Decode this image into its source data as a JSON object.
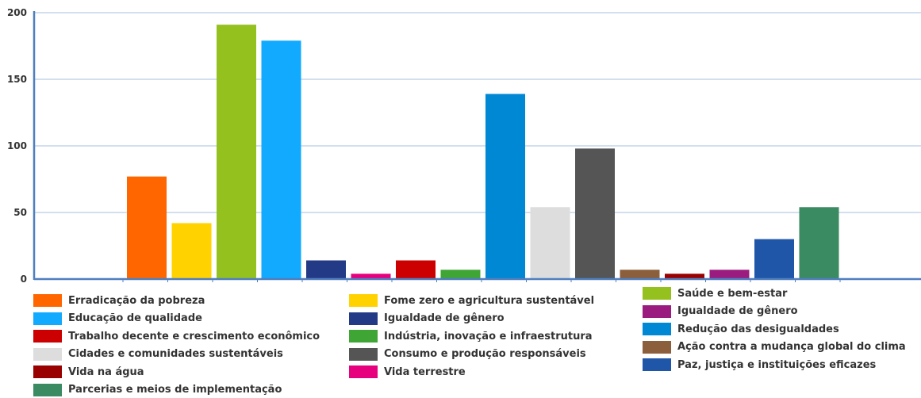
{
  "chart_data": {
    "type": "bar",
    "title": "",
    "xlabel": "",
    "ylabel": "",
    "ylim": [
      0,
      200
    ],
    "yticks": [
      0,
      50,
      100,
      150,
      200
    ],
    "grid": true,
    "legend_position": "bottom",
    "series": [
      {
        "name": "Erradicação da pobreza",
        "value": 77,
        "color": "#FF6600"
      },
      {
        "name": "Fome zero e agricultura sustentável",
        "value": 42,
        "color": "#FFD200"
      },
      {
        "name": "Saúde e bem-estar",
        "value": 191,
        "color": "#95C11F"
      },
      {
        "name": "Educação de qualidade",
        "value": 179,
        "color": "#11AAFF"
      },
      {
        "name": "Igualdade de gênero",
        "value": 14,
        "color": "#233A86"
      },
      {
        "name": "Vida terrestre",
        "value": 4,
        "color": "#E6007E"
      },
      {
        "name": "Trabalho decente e crescimento econômico",
        "value": 14,
        "color": "#CC0000"
      },
      {
        "name": "Indústria, inovação e infraestrutura",
        "value": 7,
        "color": "#3FA535"
      },
      {
        "name": "Redução das desigualdades",
        "value": 139,
        "color": "#0088D4"
      },
      {
        "name": "Cidades e comunidades sustentáveis",
        "value": 54,
        "color": "#DDDDDD"
      },
      {
        "name": "Consumo e produção responsáveis",
        "value": 98,
        "color": "#555555"
      },
      {
        "name": "Ação contra a mudança global do clima",
        "value": 7,
        "color": "#8B5E3C"
      },
      {
        "name": "Vida na água",
        "value": 4,
        "color": "#990000"
      },
      {
        "name": "Igualdade de gênero",
        "value": 7,
        "color": "#9B1C7F"
      },
      {
        "name": "Paz, justiça e instituições eficazes",
        "value": 30,
        "color": "#1F56A8"
      },
      {
        "name": "Parcerias e meios de implementação",
        "value": 54,
        "color": "#3A8A62"
      }
    ],
    "legend": [
      {
        "label": "Erradicação da pobreza",
        "color": "#FF6600"
      },
      {
        "label": "Educação de qualidade",
        "color": "#11AAFF"
      },
      {
        "label": "Trabalho decente e crescimento econômico",
        "color": "#CC0000"
      },
      {
        "label": "Cidades e comunidades sustentáveis",
        "color": "#DDDDDD"
      },
      {
        "label": "Vida na água",
        "color": "#990000"
      },
      {
        "label": "Parcerias e meios de implementação",
        "color": "#3A8A62"
      },
      {
        "label": "Fome zero e agricultura sustentável",
        "color": "#FFD200"
      },
      {
        "label": "Igualdade de gênero",
        "color": "#233A86"
      },
      {
        "label": "Indústria, inovação e infraestrutura",
        "color": "#3FA535"
      },
      {
        "label": "Consumo e produção responsáveis",
        "color": "#555555"
      },
      {
        "label": "Vida terrestre",
        "color": "#E6007E"
      },
      {
        "label": "Saúde e bem-estar",
        "color": "#95C11F"
      },
      {
        "label": "Igualdade de gênero",
        "color": "#9B1C7F"
      },
      {
        "label": "Redução das desigualdades",
        "color": "#0088D4"
      },
      {
        "label": "Ação contra a mudança global do clima",
        "color": "#8B5E3C"
      },
      {
        "label": "Paz, justiça e instituições eficazes",
        "color": "#1F56A8"
      }
    ],
    "colors": {
      "grid": "#B8CCE4",
      "axis": "#4F7FBF",
      "text": "#333333"
    }
  }
}
